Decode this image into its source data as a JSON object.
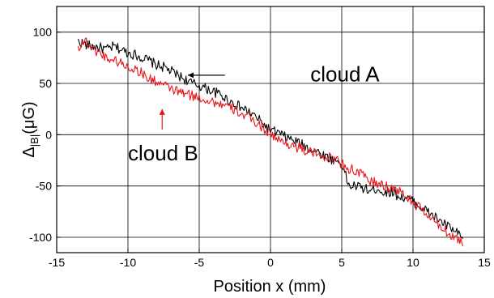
{
  "chart_data": {
    "type": "line",
    "title": "",
    "xlabel": "Position x (mm)",
    "ylabel_main": "Δ",
    "ylabel_sub": "|B|",
    "ylabel_unit": "(μG)",
    "xlim": [
      -15,
      15
    ],
    "ylim": [
      -115,
      125
    ],
    "xticks": [
      -15,
      -10,
      -5,
      0,
      5,
      10,
      15
    ],
    "yticks": [
      100,
      50,
      0,
      -50,
      -100
    ],
    "grid": true,
    "series": [
      {
        "color": "#000000",
        "x": [
          -13.5,
          -13,
          -12.5,
          -12,
          -11.5,
          -11,
          -10.5,
          -10,
          -9.5,
          -9,
          -8.5,
          -8,
          -7.5,
          -7,
          -6.5,
          -6,
          -5.5,
          -5,
          -4.5,
          -4,
          -3.5,
          -3,
          -2.5,
          -2,
          -1.5,
          -1,
          -0.5,
          0,
          0.5,
          1,
          1.5,
          2,
          2.5,
          3,
          3.5,
          4,
          4.5,
          5,
          5.5,
          6,
          6.5,
          7,
          7.5,
          8,
          8.5,
          9,
          9.5,
          10,
          10.5,
          11,
          11.5,
          12,
          12.5,
          13,
          13.5
        ],
        "values": [
          91,
          88,
          86,
          85,
          83,
          86,
          83,
          80,
          78,
          75,
          72,
          68,
          66,
          62,
          58,
          54,
          50,
          48,
          45,
          42,
          39,
          34,
          30,
          26,
          22,
          17,
          10,
          4,
          2,
          -2,
          -5,
          -8,
          -12,
          -15,
          -18,
          -22,
          -25,
          -28,
          -50,
          -50,
          -52,
          -55,
          -52,
          -57,
          -55,
          -60,
          -62,
          -65,
          -70,
          -75,
          -80,
          -85,
          -90,
          -95,
          -102
        ]
      },
      {
        "color": "#e8141c",
        "x": [
          -13.5,
          -13,
          -12.5,
          -12,
          -11.5,
          -11,
          -10.5,
          -10,
          -9.5,
          -9,
          -8.5,
          -8,
          -7.5,
          -7,
          -6.5,
          -6,
          -5.5,
          -5,
          -4.5,
          -4,
          -3.5,
          -3,
          -2.5,
          -2,
          -1.5,
          -1,
          -0.5,
          0,
          0.5,
          1,
          1.5,
          2,
          2.5,
          3,
          3.5,
          4,
          4.5,
          5,
          5.5,
          6,
          6.5,
          7,
          7.5,
          8,
          8.5,
          9,
          9.5,
          10,
          10.5,
          11,
          11.5,
          12,
          12.5,
          13,
          13.5
        ],
        "values": [
          85,
          92,
          84,
          80,
          75,
          73,
          70,
          66,
          64,
          60,
          54,
          52,
          48,
          45,
          42,
          40,
          38,
          36,
          34,
          32,
          30,
          27,
          24,
          20,
          16,
          12,
          6,
          2,
          -5,
          -8,
          -10,
          -13,
          -16,
          -18,
          -20,
          -22,
          -24,
          -28,
          -33,
          -36,
          -40,
          -45,
          -48,
          -50,
          -52,
          -55,
          -60,
          -66,
          -72,
          -78,
          -85,
          -90,
          -96,
          -100,
          -105
        ]
      }
    ],
    "annotations": [
      {
        "text": "cloud A",
        "x": 2.8,
        "y": 52,
        "arrow_from_x": -3.2,
        "arrow_from_y": 58,
        "arrow_to_x": -5.8,
        "arrow_to_y": 58
      },
      {
        "text": "cloud B",
        "x": -10,
        "y": -25,
        "arrow_from_x": -7.6,
        "arrow_from_y": 5,
        "arrow_to_x": -7.6,
        "arrow_to_y": 25
      }
    ]
  }
}
